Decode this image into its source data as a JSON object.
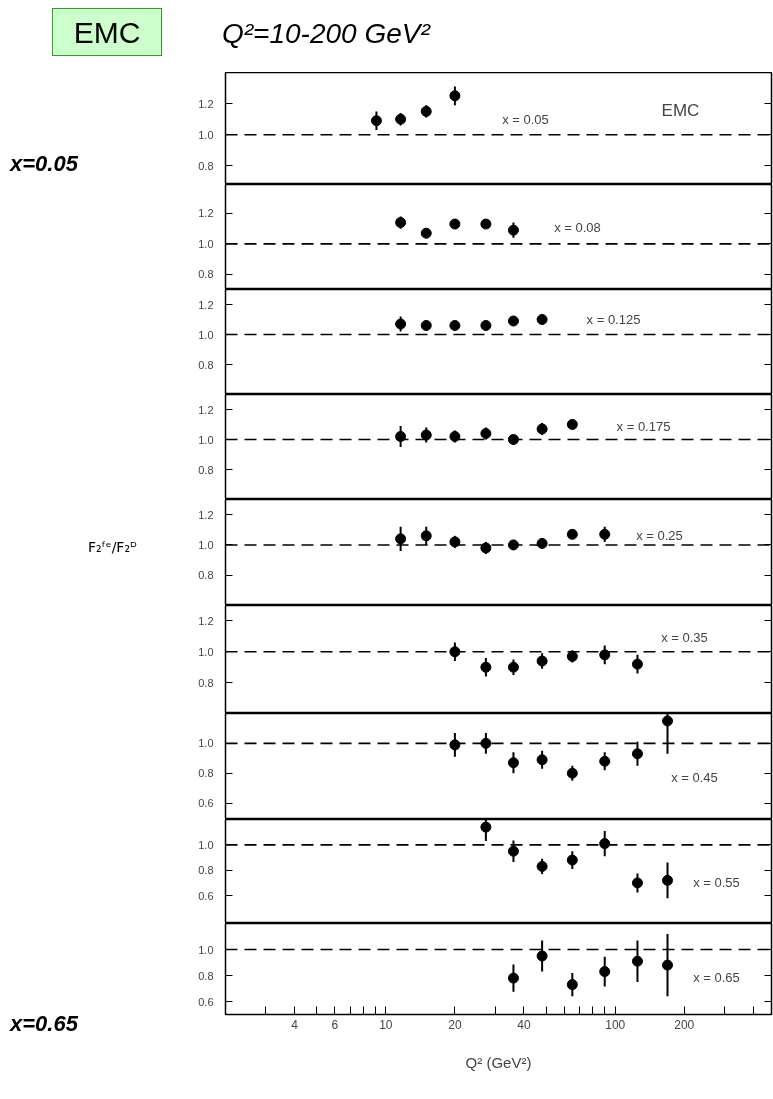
{
  "chart_data": [
    {
      "type": "scatter",
      "title": "Q²=10-200 GeV²",
      "xlim": [
        2,
        480
      ],
      "ylim": [
        0.68,
        1.4
      ],
      "log": "x",
      "marker": "circle",
      "tick_labels": "y",
      "yticks": [
        {
          "value": 0.8,
          "label": "0.8"
        },
        {
          "value": 1,
          "label": "1.0"
        },
        {
          "value": 1.2,
          "label": "1.2"
        }
      ],
      "ref_lines": [
        {
          "axis": "y",
          "value": 1,
          "line_style": "dashed"
        }
      ],
      "annotations": [
        "EMC",
        "x=0.05",
        "EMC",
        "x = 0.05"
      ],
      "series": [
        {
          "color": "#000000",
          "x": [
            9.1,
            11.6,
            15,
            20
          ],
          "values": [
            1.09,
            1.1,
            1.15,
            1.25
          ],
          "errors": [
            0.06,
            0.04,
            0.04,
            0.06
          ]
        }
      ]
    },
    {
      "type": "scatter",
      "xlim": [
        2,
        480
      ],
      "ylim": [
        0.7,
        1.39
      ],
      "log": "x",
      "marker": "circle",
      "tick_labels": "y",
      "yticks": [
        {
          "value": 0.8,
          "label": "0.8"
        },
        {
          "value": 1,
          "label": "1.0"
        },
        {
          "value": 1.2,
          "label": "1.2"
        }
      ],
      "ref_lines": [
        {
          "axis": "y",
          "value": 1,
          "line_style": "dashed"
        }
      ],
      "annotations": [
        "x = 0.08"
      ],
      "series": [
        {
          "color": "#000000",
          "x": [
            11.6,
            15,
            20,
            27.3,
            36
          ],
          "values": [
            1.14,
            1.07,
            1.13,
            1.13,
            1.09
          ],
          "errors": [
            0.04,
            0.02,
            0.02,
            0.02,
            0.05
          ]
        }
      ]
    },
    {
      "type": "scatter",
      "xlim": [
        2,
        480
      ],
      "ylim": [
        0.6,
        1.3
      ],
      "log": "x",
      "marker": "circle",
      "tick_labels": "y",
      "yticks": [
        {
          "value": 0.8,
          "label": "0.8"
        },
        {
          "value": 1,
          "label": "1.0"
        },
        {
          "value": 1.2,
          "label": "1.2"
        }
      ],
      "ref_lines": [
        {
          "axis": "y",
          "value": 1,
          "line_style": "dashed"
        }
      ],
      "annotations": [
        "x = 0.125"
      ],
      "series": [
        {
          "color": "#000000",
          "x": [
            11.6,
            15,
            20,
            27.3,
            36,
            48
          ],
          "values": [
            1.07,
            1.06,
            1.06,
            1.06,
            1.09,
            1.1
          ],
          "errors": [
            0.05,
            0.02,
            0.02,
            0.02,
            0.02,
            0.03
          ]
        }
      ]
    },
    {
      "type": "scatter",
      "xlim": [
        2,
        480
      ],
      "ylim": [
        0.6,
        1.3
      ],
      "log": "x",
      "marker": "circle",
      "tick_labels": "y",
      "yticks": [
        {
          "value": 0.8,
          "label": "0.8"
        },
        {
          "value": 1,
          "label": "1.0"
        },
        {
          "value": 1.2,
          "label": "1.2"
        }
      ],
      "ref_lines": [
        {
          "axis": "y",
          "value": 1,
          "line_style": "dashed"
        }
      ],
      "annotations": [
        "x = 0.175"
      ],
      "series": [
        {
          "color": "#000000",
          "x": [
            11.6,
            15,
            20,
            27.3,
            36,
            48,
            65
          ],
          "values": [
            1.02,
            1.03,
            1.02,
            1.04,
            1.0,
            1.07,
            1.1
          ],
          "errors": [
            0.07,
            0.05,
            0.04,
            0.04,
            0.02,
            0.04,
            0.03
          ]
        }
      ]
    },
    {
      "type": "scatter",
      "ylabel": "F₂ᶠᵉ/F₂ᴰ",
      "xlim": [
        2,
        480
      ],
      "ylim": [
        0.6,
        1.3
      ],
      "log": "x",
      "marker": "circle",
      "tick_labels": "y",
      "yticks": [
        {
          "value": 0.8,
          "label": "0.8"
        },
        {
          "value": 1,
          "label": "1.0"
        },
        {
          "value": 1.2,
          "label": "1.2"
        }
      ],
      "ref_lines": [
        {
          "axis": "y",
          "value": 1,
          "line_style": "dashed"
        }
      ],
      "annotations": [
        "x = 0.25"
      ],
      "series": [
        {
          "color": "#000000",
          "x": [
            11.6,
            15,
            20,
            27.3,
            36,
            48,
            65,
            90
          ],
          "values": [
            1.04,
            1.06,
            1.02,
            0.98,
            1.0,
            1.01,
            1.07,
            1.07
          ],
          "errors": [
            0.08,
            0.06,
            0.04,
            0.04,
            0.02,
            0.02,
            0.03,
            0.05
          ]
        }
      ]
    },
    {
      "type": "scatter",
      "xlim": [
        2,
        480
      ],
      "ylim": [
        0.6,
        1.3
      ],
      "log": "x",
      "marker": "circle",
      "tick_labels": "y",
      "yticks": [
        {
          "value": 0.8,
          "label": "0.8"
        },
        {
          "value": 1,
          "label": "1.0"
        },
        {
          "value": 1.2,
          "label": "1.2"
        }
      ],
      "ref_lines": [
        {
          "axis": "y",
          "value": 1,
          "line_style": "dashed"
        }
      ],
      "annotations": [
        "x = 0.35"
      ],
      "series": [
        {
          "color": "#000000",
          "x": [
            20,
            27.3,
            36,
            48,
            65,
            90,
            125
          ],
          "values": [
            1.0,
            0.9,
            0.9,
            0.94,
            0.97,
            0.98,
            0.92
          ],
          "errors": [
            0.06,
            0.06,
            0.05,
            0.05,
            0.04,
            0.06,
            0.06
          ]
        }
      ]
    },
    {
      "type": "scatter",
      "xlim": [
        2,
        480
      ],
      "ylim": [
        0.49,
        1.2
      ],
      "log": "x",
      "marker": "circle",
      "tick_labels": "y",
      "yticks": [
        {
          "value": 0.6,
          "label": "0.6"
        },
        {
          "value": 0.8,
          "label": "0.8"
        },
        {
          "value": 1,
          "label": "1.0"
        }
      ],
      "ref_lines": [
        {
          "axis": "y",
          "value": 1,
          "line_style": "dashed"
        }
      ],
      "annotations": [
        "x = 0.45"
      ],
      "series": [
        {
          "color": "#000000",
          "x": [
            20,
            27.3,
            36,
            48,
            65,
            90,
            125,
            169
          ],
          "values": [
            0.99,
            1.0,
            0.87,
            0.89,
            0.8,
            0.88,
            0.93,
            1.15
          ],
          "errors": [
            0.08,
            0.07,
            0.07,
            0.06,
            0.05,
            0.06,
            0.08,
            [
              0.93,
              1.2
            ]
          ]
        }
      ]
    },
    {
      "type": "scatter",
      "xlim": [
        2,
        480
      ],
      "ylim": [
        0.38,
        1.2
      ],
      "log": "x",
      "marker": "circle",
      "tick_labels": "y",
      "yticks": [
        {
          "value": 0.6,
          "label": "0.6"
        },
        {
          "value": 0.8,
          "label": "0.8"
        },
        {
          "value": 1,
          "label": "1.0"
        }
      ],
      "ref_lines": [
        {
          "axis": "y",
          "value": 1,
          "line_style": "dashed"
        }
      ],
      "annotations": [
        "x = 0.55"
      ],
      "series": [
        {
          "color": "#000000",
          "x": [
            27.3,
            36,
            48,
            65,
            90,
            125,
            169
          ],
          "values": [
            1.14,
            0.95,
            0.83,
            0.88,
            1.01,
            0.7,
            0.72
          ],
          "errors": [
            [
              1.03,
              1.2
            ],
            0.085,
            0.06,
            0.07,
            0.1,
            0.075,
            0.14
          ]
        }
      ]
    },
    {
      "type": "scatter",
      "xlabel": "Q² (GeV²)",
      "xlim": [
        2,
        480
      ],
      "ylim": [
        0.5,
        1.2
      ],
      "log": "x",
      "marker": "circle",
      "xticks": [
        {
          "value": 3,
          "label": null
        },
        4,
        {
          "value": 5,
          "label": null
        },
        6,
        {
          "value": 7,
          "label": null
        },
        {
          "value": 8,
          "label": null
        },
        {
          "value": 9,
          "label": null
        },
        10,
        20,
        {
          "value": 30,
          "label": null
        },
        40,
        {
          "value": 50,
          "label": null
        },
        {
          "value": 60,
          "label": null
        },
        {
          "value": 70,
          "label": null
        },
        {
          "value": 80,
          "label": null
        },
        {
          "value": 90,
          "label": null
        },
        100,
        200,
        {
          "value": 300,
          "label": null
        },
        {
          "value": 400,
          "label": null
        }
      ],
      "yticks": [
        {
          "value": 0.6,
          "label": "0.6"
        },
        {
          "value": 0.8,
          "label": "0.8"
        },
        {
          "value": 1,
          "label": "1.0"
        }
      ],
      "ref_lines": [
        {
          "axis": "y",
          "value": 1,
          "line_style": "dashed"
        }
      ],
      "annotations": [
        "x=0.65",
        "x = 0.65"
      ],
      "series": [
        {
          "color": "#000000",
          "x": [
            36,
            48,
            65,
            90,
            125,
            169
          ],
          "values": [
            0.78,
            0.95,
            0.73,
            0.83,
            0.91,
            0.88
          ],
          "errors": [
            0.105,
            0.12,
            0.09,
            0.115,
            0.16,
            0.24
          ]
        }
      ]
    }
  ]
}
